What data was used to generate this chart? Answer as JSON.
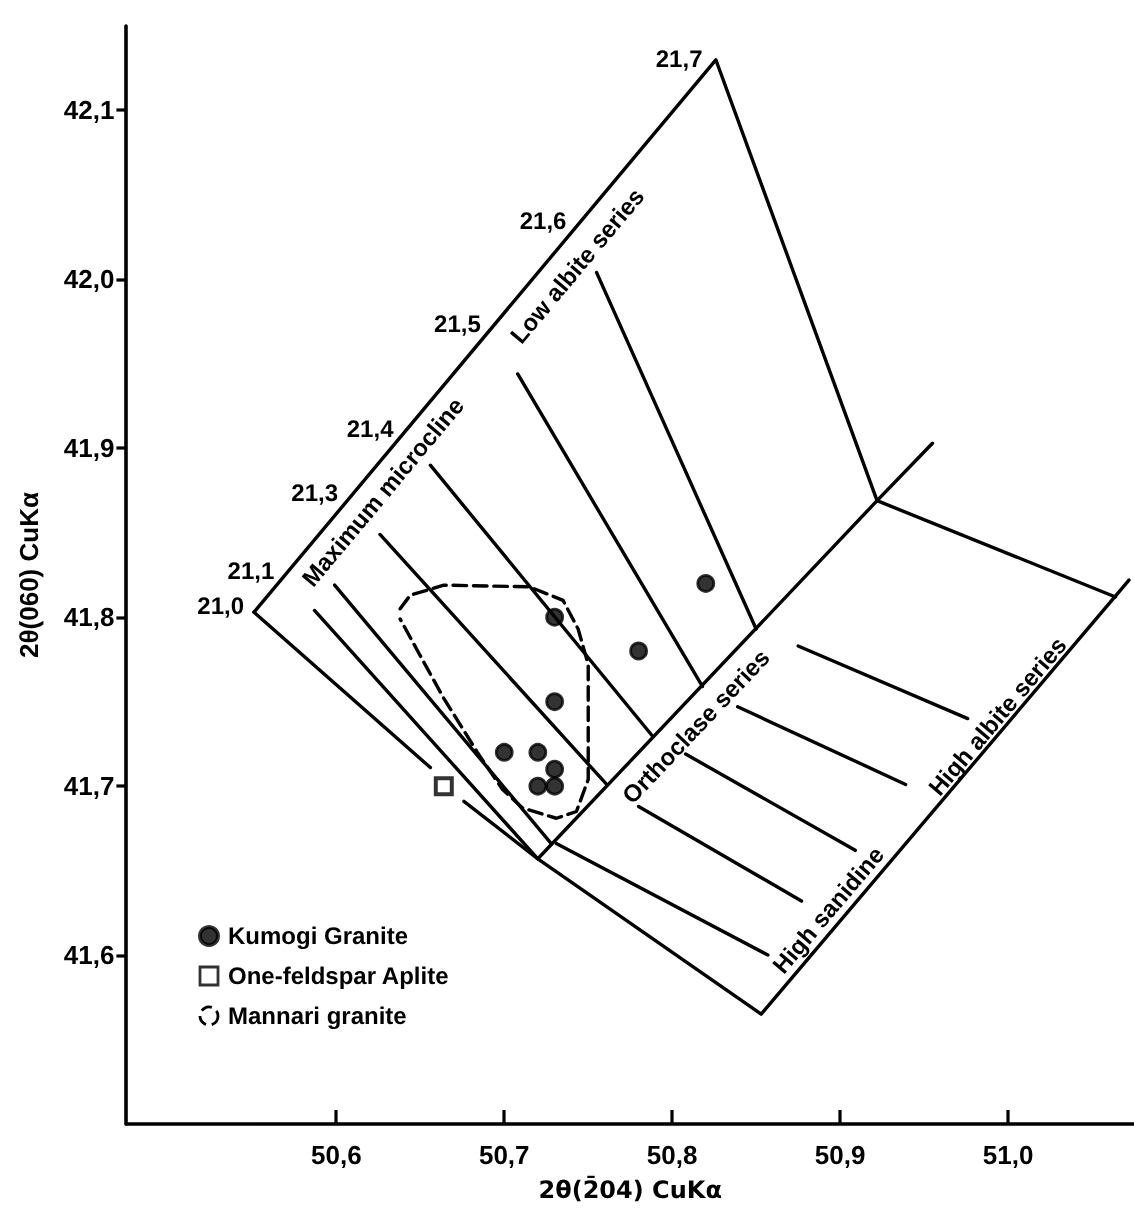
{
  "chart_data": {
    "type": "scatter",
    "xlabel": "2θ(2̄04) CuKα",
    "ylabel": "2θ(060) CuKα",
    "xlim": [
      50.475,
      51.075
    ],
    "ylim": [
      41.5,
      42.15
    ],
    "xticks": [
      {
        "value": 50.6,
        "label": "50,6"
      },
      {
        "value": 50.7,
        "label": "50,7"
      },
      {
        "value": 50.8,
        "label": "50,8"
      },
      {
        "value": 50.9,
        "label": "50,9"
      },
      {
        "value": 51.0,
        "label": "51,0"
      }
    ],
    "yticks": [
      {
        "value": 41.6,
        "label": "41,6"
      },
      {
        "value": 41.7,
        "label": "41,7"
      },
      {
        "value": 41.8,
        "label": "41,8"
      },
      {
        "value": 41.9,
        "label": "41,9"
      },
      {
        "value": 42.0,
        "label": "42,0"
      },
      {
        "value": 42.1,
        "label": "42,1"
      }
    ],
    "grid": false,
    "legend": "bottom left",
    "marker": "none",
    "line_style": "solid",
    "series": [
      {
        "type": "line",
        "color": "#000000",
        "x": [
          50.551,
          50.826,
          50.922,
          51.064
        ],
        "values": [
          41.803,
          42.13,
          41.869,
          41.812
        ]
      },
      {
        "type": "line",
        "color": "#000000",
        "x": [
          50.551,
          50.656
        ],
        "values": [
          41.803,
          41.711
        ]
      },
      {
        "type": "line",
        "color": "#000000",
        "x": [
          50.676,
          50.72,
          50.853,
          51.072
        ],
        "values": [
          41.691,
          41.657,
          41.565,
          41.822
        ]
      },
      {
        "type": "line",
        "color": "#000000",
        "x": [
          50.587,
          50.72
        ],
        "values": [
          41.804,
          41.657
        ]
      },
      {
        "type": "line",
        "color": "#000000",
        "x": [
          50.599,
          50.728
        ],
        "values": [
          41.819,
          41.666
        ]
      },
      {
        "type": "line",
        "color": "#000000",
        "x": [
          50.626,
          50.761
        ],
        "values": [
          41.849,
          41.701
        ]
      },
      {
        "type": "line",
        "color": "#000000",
        "x": [
          50.656,
          50.788
        ],
        "values": [
          41.89,
          41.73
        ]
      },
      {
        "type": "line",
        "color": "#000000",
        "x": [
          50.708,
          50.818
        ],
        "values": [
          41.944,
          41.759
        ]
      },
      {
        "type": "line",
        "color": "#000000",
        "x": [
          50.755,
          50.85
        ],
        "values": [
          42.004,
          41.793
        ]
      },
      {
        "type": "line",
        "color": "#000000",
        "x": [
          50.72,
          50.922,
          50.955
        ],
        "values": [
          41.657,
          41.869,
          41.903
        ]
      },
      {
        "type": "line",
        "color": "#000000",
        "x": [
          50.875,
          50.976
        ],
        "values": [
          41.783,
          41.74
        ]
      },
      {
        "type": "line",
        "color": "#000000",
        "x": [
          50.839,
          50.939
        ],
        "values": [
          41.747,
          41.701
        ]
      },
      {
        "type": "line",
        "color": "#000000",
        "x": [
          50.808,
          50.909
        ],
        "values": [
          41.719,
          41.662
        ]
      },
      {
        "type": "line",
        "color": "#000000",
        "x": [
          50.78,
          50.877
        ],
        "values": [
          41.688,
          41.632
        ]
      },
      {
        "type": "line",
        "color": "#000000",
        "x": [
          50.731,
          50.857
        ],
        "values": [
          41.666,
          41.6
        ]
      },
      {
        "name": "Kumogi Granite",
        "marker": "circle",
        "color": "#000000",
        "x": [
          50.73,
          50.73,
          50.7,
          50.72,
          50.73,
          50.72,
          50.73,
          50.78,
          50.82
        ],
        "values": [
          41.8,
          41.75,
          41.72,
          41.72,
          41.71,
          41.7,
          41.7,
          41.78,
          41.82
        ]
      },
      {
        "name": "One-feldspar Aplite",
        "marker": "square",
        "color": "#000000",
        "x": [
          50.664
        ],
        "values": [
          41.7
        ]
      },
      {
        "name": "Mannari granite",
        "type": "line",
        "marker": "none",
        "line_style": "dashed",
        "color": "#000000",
        "x": [
          50.638,
          50.644,
          50.664,
          50.715,
          50.735,
          50.744,
          50.75,
          50.75,
          50.743,
          50.731,
          50.711,
          50.699,
          50.684,
          50.664,
          50.649,
          50.638
        ],
        "values": [
          41.805,
          41.813,
          41.819,
          41.818,
          41.81,
          41.793,
          41.772,
          41.704,
          41.685,
          41.681,
          41.687,
          41.698,
          41.72,
          41.752,
          41.779,
          41.799
        ]
      }
    ],
    "annotations": [
      {
        "text": "21,0",
        "x": 50.551,
        "y": 41.803
      },
      {
        "text": "21,1",
        "x": 50.569,
        "y": 41.824
      },
      {
        "text": "21,3",
        "x": 50.607,
        "y": 41.87
      },
      {
        "text": "21,4",
        "x": 50.64,
        "y": 41.908
      },
      {
        "text": "21,5",
        "x": 50.692,
        "y": 41.97
      },
      {
        "text": "21,6",
        "x": 50.743,
        "y": 42.031
      },
      {
        "text": "21,7",
        "x": 50.824,
        "y": 42.127
      },
      "Maximum microcline",
      "Low albite series",
      "Orthoclase series",
      "High sanidine",
      "High albite series"
    ]
  }
}
